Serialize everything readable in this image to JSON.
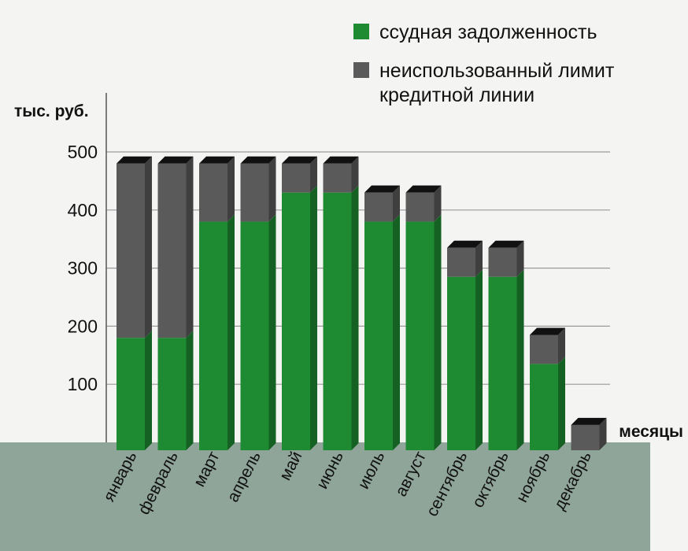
{
  "chart_data": {
    "type": "bar",
    "stacked": true,
    "categories": [
      "январь",
      "февраль",
      "март",
      "апрель",
      "май",
      "июнь",
      "июль",
      "август",
      "сентябрь",
      "октябрь",
      "ноябрь",
      "декабрь"
    ],
    "series": [
      {
        "name": "ссудная задолженность",
        "color": "#1e8a32",
        "values": [
          180,
          180,
          380,
          380,
          430,
          430,
          380,
          380,
          285,
          285,
          135,
          0
        ]
      },
      {
        "name": "неиспользованный лимит кредитной линии",
        "color": "#5a5a5a",
        "values": [
          300,
          300,
          100,
          100,
          50,
          50,
          50,
          50,
          50,
          50,
          50,
          30
        ]
      }
    ],
    "yticks": [
      100,
      200,
      300,
      400,
      500
    ],
    "ylim": [
      0,
      500
    ],
    "ylabel": "тыс. руб.",
    "xlabel": "месяцы",
    "legend": {
      "position": "top-right",
      "lines": [
        [
          "ссудная задолженность"
        ],
        [
          "неиспользованный лимит",
          "кредитной линии"
        ]
      ]
    },
    "grid": true
  }
}
